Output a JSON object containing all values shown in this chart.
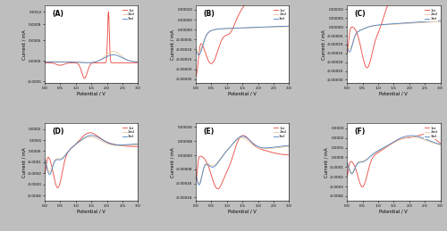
{
  "panels": [
    "A",
    "B",
    "C",
    "D",
    "E",
    "F"
  ],
  "colors": {
    "1st": "#e8433a",
    "2nd": "#e8c49a",
    "3rd": "#4a7fc1"
  },
  "fig_bg": "#bebebe",
  "panel_A": {
    "ylim": [
      -0.00055,
      0.00135
    ],
    "yticks": [
      -0.0005,
      0.0,
      0.0005,
      0.0009,
      0.0012
    ],
    "ytick_labels": [
      "-0.0005",
      "0.0000",
      "0.0005",
      "0.0009",
      "0.0012"
    ]
  },
  "panel_B": {
    "ylim": [
      -0.00027,
      0.00012
    ],
    "yticks": [
      -0.00025,
      -0.0002,
      -0.00015,
      -0.0001,
      -5e-05,
      0.0,
      5e-05,
      0.0001
    ],
    "ytick_labels": [
      "-0.00025",
      "-0.00020",
      "-0.00015",
      "-0.00010",
      "-0.00005",
      "0.00000",
      "0.00005",
      "0.00010"
    ]
  },
  "panel_C": {
    "ylim": [
      -0.00032,
      0.00012
    ],
    "yticks": [
      -0.0003,
      -0.00025,
      -0.0002,
      -0.00015,
      -0.0001,
      -5e-05,
      0.0,
      5e-05,
      0.0001
    ],
    "ytick_labels": [
      "-0.00030",
      "-0.00025",
      "-0.00020",
      "-0.00015",
      "-0.00010",
      "-0.00005",
      "0.00000",
      "0.00005",
      "0.00010"
    ]
  },
  "panel_D": {
    "ylim": [
      -0.00045,
      0.00025
    ],
    "yticks": [
      -0.0004,
      -0.0003,
      -0.0002,
      -0.0001,
      0.0,
      0.0001,
      0.0002
    ],
    "ytick_labels": [
      "-0.0004",
      "-0.0003",
      "-0.0002",
      "-0.0001",
      "0.0000",
      "0.0001",
      "0.0002"
    ]
  },
  "panel_E": {
    "ylim": [
      -0.00026,
      0.00018
    ],
    "yticks": [
      -0.00024,
      -0.00016,
      -8e-05,
      0.0,
      8e-05,
      0.00016
    ],
    "ytick_labels": [
      "-0.00024",
      "-0.00016",
      "-0.00008",
      "0.00000",
      "0.00008",
      "0.00016"
    ]
  },
  "panel_F": {
    "ylim": [
      -0.00045,
      0.00035
    ],
    "yticks": [
      -0.0004,
      -0.0003,
      -0.0002,
      -0.0001,
      0.0,
      0.0001,
      0.0002,
      0.0003
    ],
    "ytick_labels": [
      "-0.0004",
      "-0.0003",
      "-0.0002",
      "-0.0001",
      "0.0000",
      "0.0001",
      "0.0002",
      "0.0003"
    ]
  }
}
